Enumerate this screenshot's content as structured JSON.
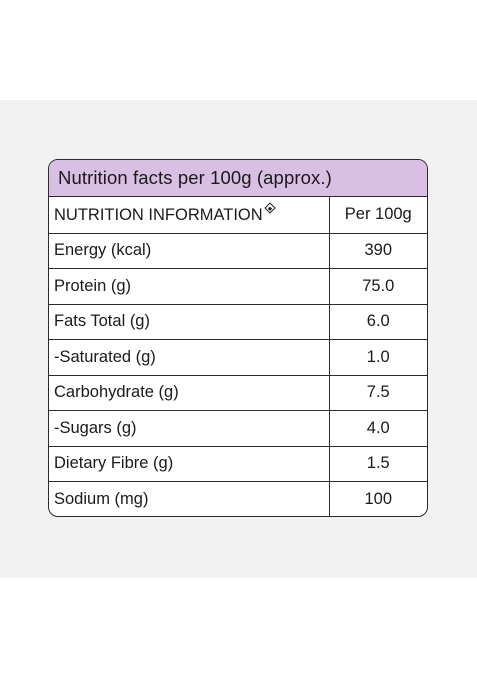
{
  "panel": {
    "title": "Nutrition facts per 100g (approx.)"
  },
  "table": {
    "header": {
      "label": "NUTRITION INFORMATION",
      "label_icon": "diamond-icon",
      "value": "Per 100g"
    },
    "rows": [
      {
        "label": "Energy (kcal)",
        "value": "390"
      },
      {
        "label": "Protein (g)",
        "value": "75.0"
      },
      {
        "label": "Fats Total (g)",
        "value": "6.0"
      },
      {
        "label": "-Saturated (g)",
        "value": "1.0"
      },
      {
        "label": "Carbohydrate (g)",
        "value": "7.5"
      },
      {
        "label": "-Sugars (g)",
        "value": "4.0"
      },
      {
        "label": "Dietary Fibre (g)",
        "value": "1.5"
      },
      {
        "label": "Sodium (mg)",
        "value": "100"
      }
    ]
  },
  "colors": {
    "header_bg": "#d9bfe3",
    "backdrop": "#f2f1f2",
    "border": "#2b2b2b"
  }
}
